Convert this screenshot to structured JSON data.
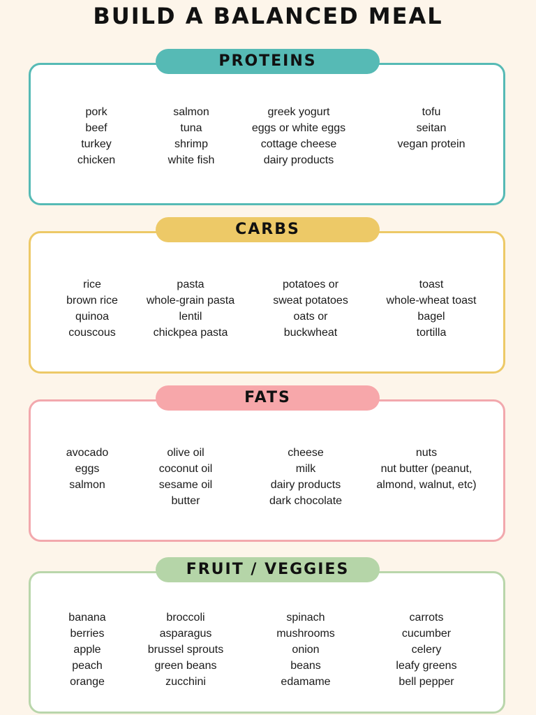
{
  "title": "BUILD A BALANCED MEAL",
  "sections": [
    {
      "heading": "PROTEINS",
      "color": "#56bab5",
      "pill_color": "#56bab5",
      "columns": [
        [
          "pork",
          "beef",
          "turkey",
          "chicken"
        ],
        [
          "salmon",
          "tuna",
          "shrimp",
          "white fish"
        ],
        [
          "greek yogurt",
          "eggs or white eggs",
          "cottage cheese",
          "dairy products"
        ],
        [
          "tofu",
          "seitan",
          "vegan protein"
        ]
      ]
    },
    {
      "heading": "CARBS",
      "color": "#edc967",
      "pill_color": "#edc967",
      "columns": [
        [
          "rice",
          "brown rice",
          "quinoa",
          "couscous"
        ],
        [
          "pasta",
          "whole-grain pasta",
          "lentil",
          "chickpea pasta"
        ],
        [
          "potatoes or",
          "sweat potatoes",
          "oats or",
          "buckwheat"
        ],
        [
          "toast",
          "whole-wheat toast",
          "bagel",
          "tortilla"
        ]
      ]
    },
    {
      "heading": "FATS",
      "color": "#f2a8ad",
      "pill_color": "#f7a7aa",
      "columns": [
        [
          "avocado",
          "eggs",
          "salmon"
        ],
        [
          "olive oil",
          "coconut oil",
          "sesame oil",
          "butter"
        ],
        [
          "cheese",
          "milk",
          "dairy products",
          "dark chocolate"
        ],
        [
          "nuts",
          "nut butter (peanut,",
          "almond, walnut, etc)"
        ]
      ]
    },
    {
      "heading": "FRUIT / VEGGIES",
      "color": "#b9d6ab",
      "pill_color": "#b5d5a8",
      "columns": [
        [
          "banana",
          "berries",
          "apple",
          "peach",
          "orange"
        ],
        [
          "broccoli",
          "asparagus",
          "brussel sprouts",
          "green beans",
          "zucchini"
        ],
        [
          "spinach",
          "mushrooms",
          "onion",
          "beans",
          "edamame"
        ],
        [
          "carrots",
          "cucumber",
          "celery",
          "leafy greens",
          "bell pepper"
        ]
      ]
    }
  ]
}
